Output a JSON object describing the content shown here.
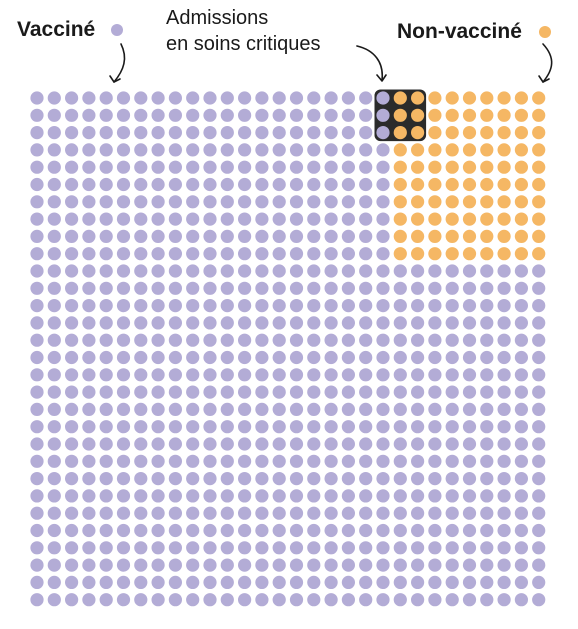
{
  "chart_data": {
    "type": "waffle",
    "rows": 30,
    "cols": 30,
    "total_dots": 900,
    "categories": [
      {
        "name": "Vacciné",
        "color": "#b3acd6"
      },
      {
        "name": "Non-vacciné",
        "color": "#f5b764"
      }
    ],
    "non_vaccinated_block": {
      "rows": 10,
      "cols": 9
    },
    "critical_care_block": {
      "rows": 3,
      "cols": 3,
      "vaccinated_cols": 1,
      "non_vaccinated_cols": 2
    },
    "labels": {
      "vaccinated": "Vacciné",
      "non_vaccinated": "Non-vacciné",
      "critical_line1": "Admissions",
      "critical_line2": "en soins critiques"
    },
    "colors": {
      "vaccinated": "#b3acd6",
      "non_vaccinated": "#f5b764",
      "highlight_box": "#2b2b2b",
      "text": "#1a1a1a"
    }
  }
}
